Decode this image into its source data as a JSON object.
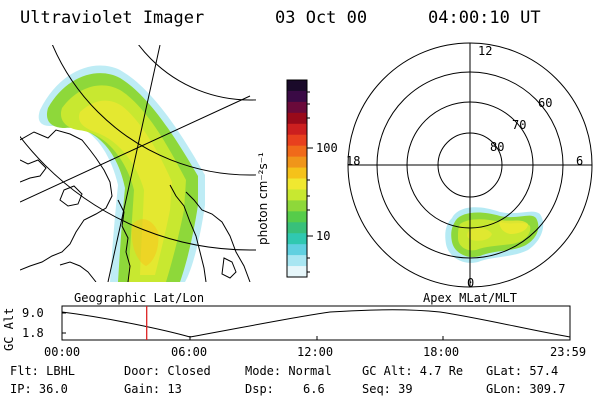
{
  "header": {
    "instrument": "Ultraviolet Imager",
    "date": "03 Oct 00",
    "time": "04:00:10 UT"
  },
  "colorbar": {
    "unit_label": "photon cm⁻²s⁻¹",
    "tick_labels": [
      "100",
      "10"
    ],
    "colors": [
      "#1a0a2a",
      "#3a0a45",
      "#6a0a3a",
      "#990a1a",
      "#cc1f1f",
      "#e8401e",
      "#f06a1a",
      "#f0951a",
      "#f5c21a",
      "#f0e830",
      "#c8e830",
      "#8ed83a",
      "#56cc4a",
      "#38c07a",
      "#30c8b0",
      "#60d0e0",
      "#a8e6f2",
      "#e6f6fa"
    ]
  },
  "geo_map": {
    "caption": "Geographic Lat/Lon"
  },
  "polar_plot": {
    "caption": "Apex MLat/MLT",
    "mlt_labels": [
      "12",
      "18",
      "6",
      "0"
    ],
    "lat_labels": [
      "60",
      "70",
      "80"
    ]
  },
  "orbit_plot": {
    "ylabel": "GC Alt",
    "y_ticks": [
      "9.0",
      "1.8"
    ],
    "x_ticks": [
      "00:00",
      "06:00",
      "12:00",
      "18:00",
      "23:59"
    ],
    "marker_time_hours": 4.0
  },
  "info": {
    "flt": "Flt: LBHL",
    "ip": "IP: 36.0",
    "door": "Door: Closed",
    "gain": "Gain: 13",
    "mode": "Mode: Normal",
    "dsp_label": "Dsp:",
    "dsp_value": "6.6",
    "gc_alt": "GC Alt: 4.7 Re",
    "seq": "Seq: 39",
    "glat": "GLat: 57.4",
    "glon": "GLon: 309.7"
  }
}
